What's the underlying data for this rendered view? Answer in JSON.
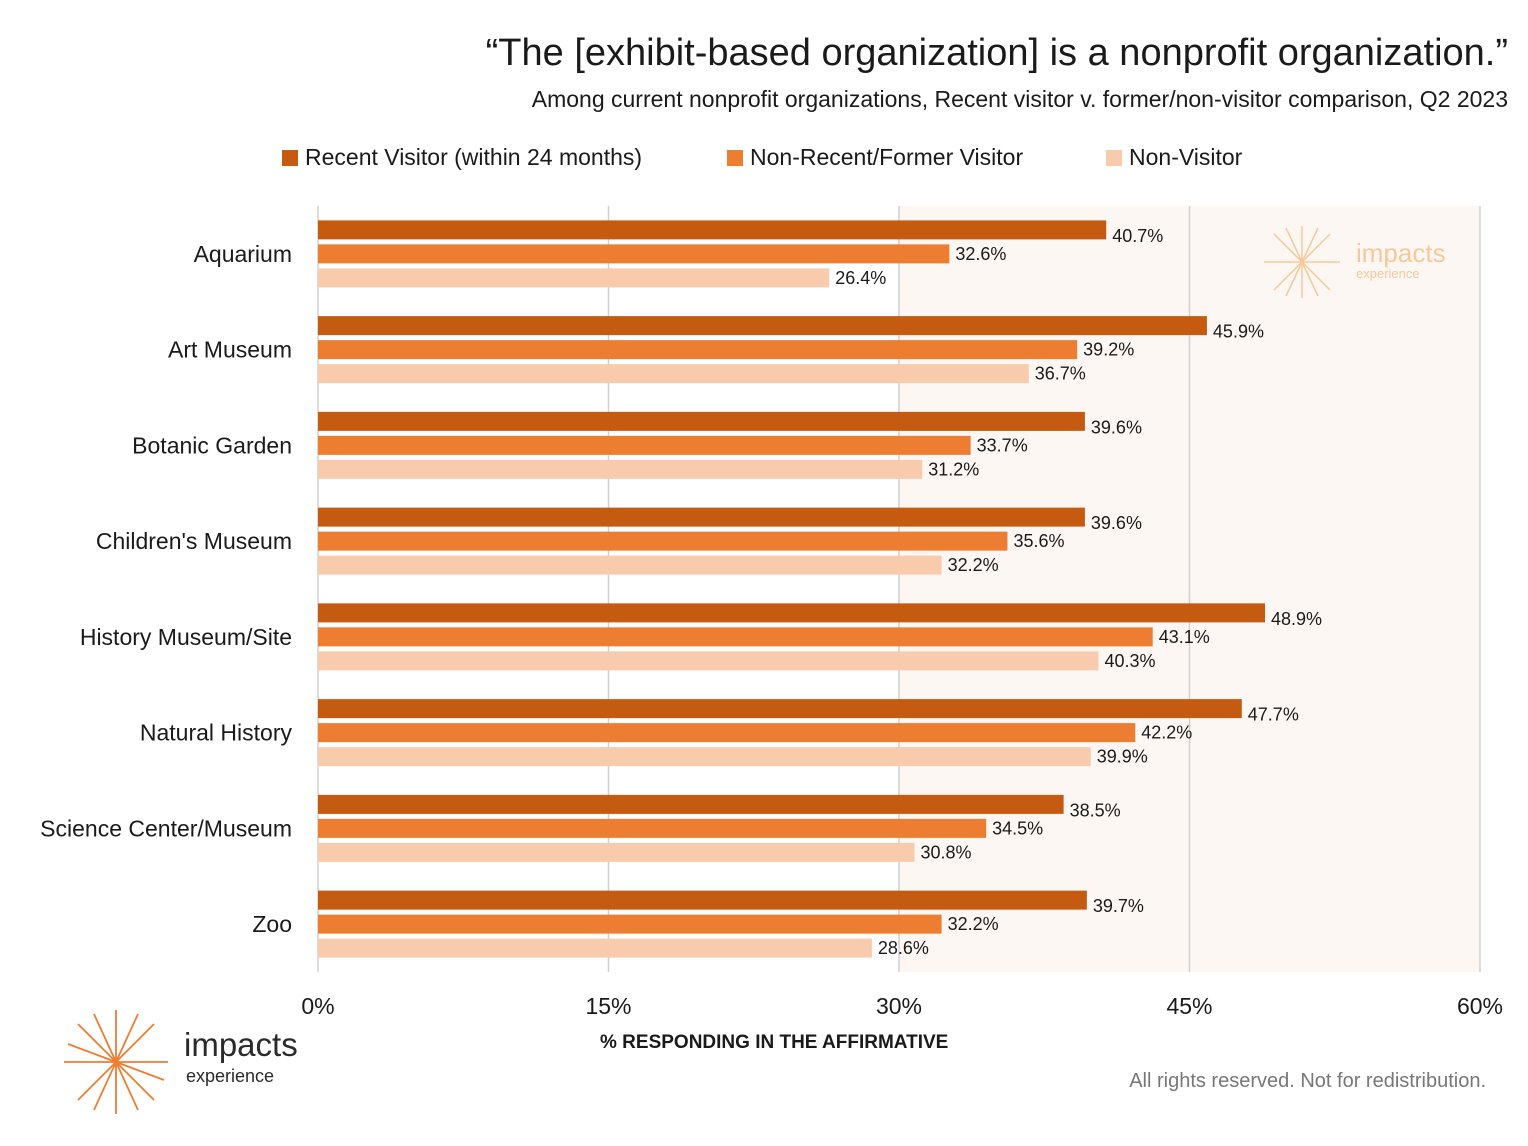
{
  "title": "“The [exhibit-based organization] is a nonprofit organization.”",
  "subtitle": "Among current nonprofit organizations, Recent visitor v. former/non-visitor comparison, Q2 2023",
  "colors": {
    "recent": "#c55a11",
    "former": "#ed7d31",
    "non": "#f8cbad",
    "plot_bg_shade": "#fcf7f3",
    "grid": "#d0d0d0"
  },
  "legend": [
    {
      "label": "Recent Visitor (within 24 months)"
    },
    {
      "label": "Non-Recent/Former Visitor"
    },
    {
      "label": "Non-Visitor"
    }
  ],
  "chart_data": {
    "type": "bar",
    "orientation": "horizontal",
    "categories": [
      "Aquarium",
      "Art Museum",
      "Botanic Garden",
      "Children's Museum",
      "History Museum/Site",
      "Natural History",
      "Science Center/Museum",
      "Zoo"
    ],
    "series": [
      {
        "name": "Recent Visitor (within 24 months)",
        "values": [
          40.7,
          45.9,
          39.6,
          39.6,
          48.9,
          47.7,
          38.5,
          39.7
        ]
      },
      {
        "name": "Non-Recent/Former Visitor",
        "values": [
          32.6,
          39.2,
          33.7,
          35.6,
          43.1,
          42.2,
          34.5,
          32.2
        ]
      },
      {
        "name": "Non-Visitor",
        "values": [
          26.4,
          36.7,
          31.2,
          32.2,
          40.3,
          39.9,
          30.8,
          28.6
        ]
      }
    ],
    "xticks": [
      "0%",
      "15%",
      "30%",
      "45%",
      "60%"
    ],
    "xlim": [
      0,
      60
    ],
    "xlabel": "% RESPONDING IN THE AFFIRMATIVE",
    "ylabel": "",
    "legend_position": "top",
    "grid": true
  },
  "footer": "All rights reserved. Not for redistribution.",
  "logo": {
    "name": "impacts",
    "sub": "experience"
  },
  "watermark": {
    "name": "impacts",
    "sub": "experience"
  }
}
